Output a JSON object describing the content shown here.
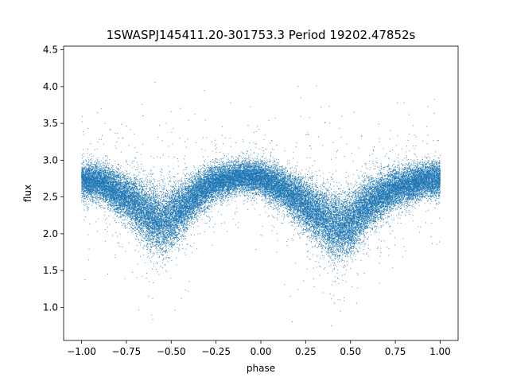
{
  "chart_data": {
    "type": "scatter",
    "title": "1SWASPJ145411.20-301753.3 Period 19202.47852s",
    "xlabel": "phase",
    "ylabel": "flux",
    "xlim": [
      -1.1,
      1.1
    ],
    "ylim": [
      0.55,
      4.55
    ],
    "xticks": [
      -1.0,
      -0.75,
      -0.5,
      -0.25,
      0.0,
      0.25,
      0.5,
      0.75,
      1.0
    ],
    "xtick_labels": [
      "−1.00",
      "−0.75",
      "−0.50",
      "−0.25",
      "0.00",
      "0.25",
      "0.50",
      "0.75",
      "1.00"
    ],
    "yticks": [
      1.0,
      1.5,
      2.0,
      2.5,
      3.0,
      3.5,
      4.0,
      4.5
    ],
    "ytick_labels": [
      "1.0",
      "1.5",
      "2.0",
      "2.5",
      "3.0",
      "3.5",
      "4.0",
      "4.5"
    ],
    "grid": false,
    "marker_color": "#1f77b4",
    "series": [
      {
        "phase_min": -1.0,
        "phase_max": 1.0,
        "approx_points": 40000,
        "trend_phase": [
          -1.0,
          -0.9,
          -0.75,
          -0.6,
          -0.55,
          -0.5,
          -0.35,
          -0.25,
          -0.1,
          0.0,
          0.1,
          0.25,
          0.4,
          0.45,
          0.5,
          0.6,
          0.75,
          0.9,
          1.0
        ],
        "trend_flux": [
          2.72,
          2.7,
          2.5,
          2.2,
          2.15,
          2.2,
          2.55,
          2.7,
          2.78,
          2.75,
          2.65,
          2.4,
          2.1,
          2.1,
          2.15,
          2.4,
          2.62,
          2.72,
          2.74
        ],
        "spread_sigma": 0.2
      }
    ]
  }
}
